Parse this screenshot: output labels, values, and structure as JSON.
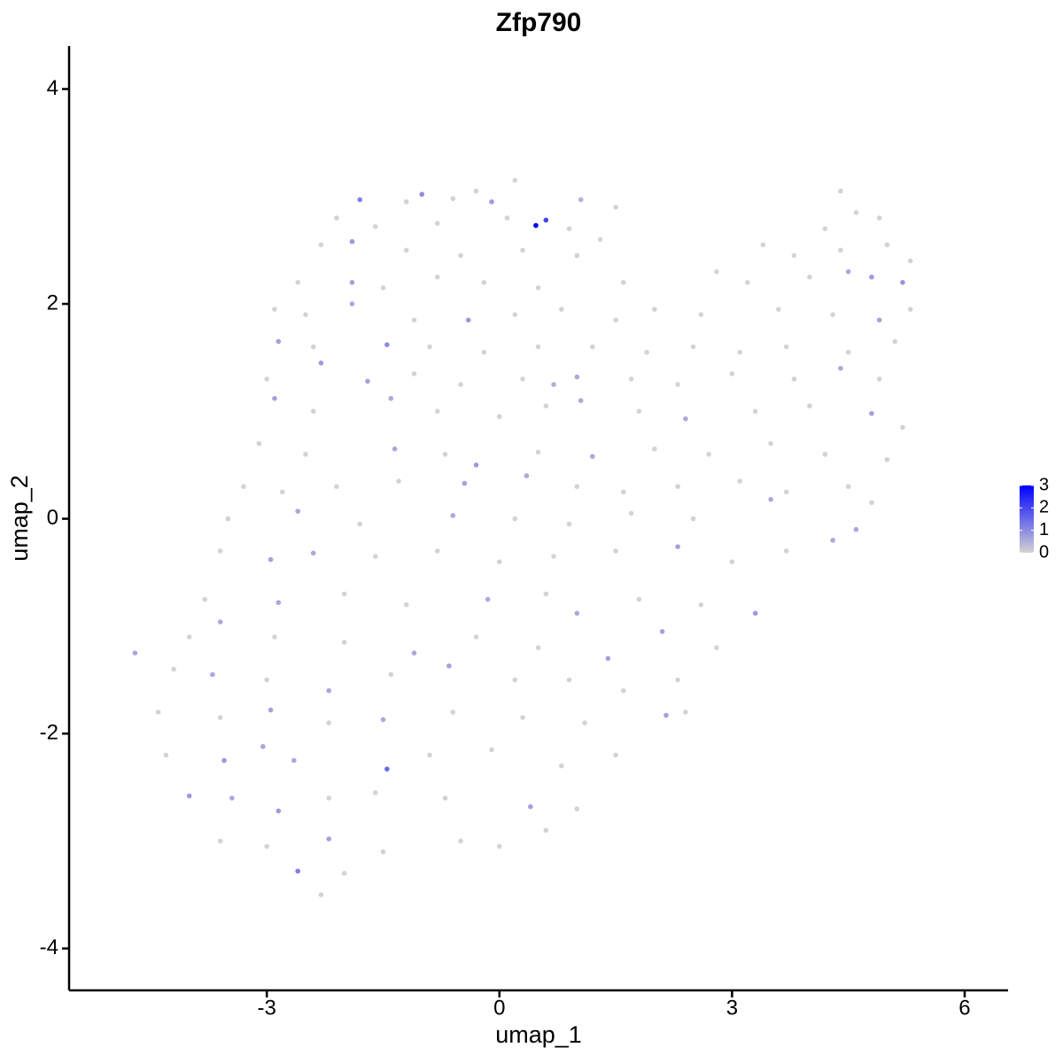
{
  "chart_data": {
    "type": "scatter",
    "title": "Zfp790",
    "xlabel": "umap_1",
    "ylabel": "umap_2",
    "xlim": [
      -5.55,
      6.56
    ],
    "ylim": [
      -4.39,
      4.4
    ],
    "xticks": [
      -3,
      0,
      3,
      6
    ],
    "yticks": [
      -4,
      -2,
      0,
      2,
      4
    ],
    "colors": [
      "#d3d3d3",
      "#0000ff"
    ],
    "colorbar_lim": [
      0,
      3
    ],
    "colorbar_ticks": [
      0,
      1,
      2,
      3
    ],
    "legend": "right",
    "x": [
      -1.8,
      -1.2,
      -1.0,
      -0.6,
      -0.3,
      0.2,
      -0.1,
      1.05,
      1.5,
      4.4,
      -2.1,
      -1.6,
      -0.8,
      0.1,
      0.47,
      0.6,
      0.9,
      4.6,
      4.9,
      4.2,
      -2.3,
      -1.9,
      -1.2,
      -0.5,
      0.3,
      1.0,
      1.3,
      3.4,
      3.8,
      4.4,
      5.0,
      5.3,
      -2.6,
      -1.9,
      -1.5,
      -0.8,
      -0.2,
      0.5,
      1.6,
      2.8,
      3.2,
      4.0,
      4.5,
      4.8,
      5.2,
      -2.9,
      -2.5,
      -1.9,
      -1.1,
      -0.4,
      0.2,
      0.8,
      1.5,
      2.0,
      2.6,
      3.6,
      4.3,
      4.9,
      5.3,
      -2.85,
      -2.4,
      -1.45,
      -0.9,
      -0.2,
      0.5,
      1.2,
      1.9,
      2.5,
      3.1,
      3.7,
      4.5,
      5.1,
      -3.0,
      -2.3,
      -1.7,
      -1.1,
      -0.5,
      0.3,
      0.7,
      1.0,
      1.7,
      2.3,
      3.0,
      3.8,
      4.4,
      4.9,
      -2.9,
      -2.4,
      -1.4,
      -0.8,
      0.0,
      0.6,
      1.05,
      1.8,
      2.4,
      3.3,
      4.0,
      4.8,
      5.2,
      -3.1,
      -2.5,
      -1.35,
      -0.7,
      -0.3,
      0.5,
      1.2,
      2.0,
      2.7,
      3.5,
      4.2,
      5.0,
      -3.3,
      -2.8,
      -2.1,
      -1.3,
      -0.45,
      0.35,
      1.0,
      1.6,
      2.3,
      3.1,
      3.7,
      4.5,
      4.8,
      -3.5,
      -2.6,
      -1.8,
      -0.6,
      0.2,
      0.9,
      1.7,
      2.5,
      3.5,
      4.3,
      4.6,
      -3.6,
      -2.95,
      -2.4,
      -1.6,
      -0.8,
      0.0,
      0.7,
      1.5,
      2.3,
      3.0,
      3.7,
      -3.8,
      -2.85,
      -2.0,
      -1.2,
      -0.15,
      0.6,
      1.0,
      1.8,
      2.6,
      3.3,
      -4.7,
      -4.0,
      -3.6,
      -2.9,
      -2.0,
      -1.1,
      -0.3,
      0.5,
      1.4,
      2.1,
      2.8,
      -4.2,
      -3.7,
      -3.0,
      -2.2,
      -1.4,
      -0.65,
      0.2,
      0.9,
      1.6,
      2.3,
      -4.4,
      -3.6,
      -2.95,
      -2.2,
      -1.5,
      -0.6,
      0.3,
      1.1,
      2.15,
      2.4,
      -4.3,
      -3.55,
      -3.05,
      -2.65,
      -1.45,
      -0.9,
      -0.1,
      0.8,
      1.5,
      -4.0,
      -3.45,
      -2.85,
      -2.2,
      -1.6,
      -0.7,
      0.4,
      1.0,
      0.6,
      -3.6,
      -3.0,
      -2.6,
      -2.2,
      -1.5,
      -0.5,
      0.0,
      -2.3,
      -2.0
    ],
    "y": [
      2.97,
      2.95,
      3.02,
      2.98,
      3.05,
      3.15,
      2.95,
      2.97,
      2.9,
      3.05,
      2.8,
      2.72,
      2.75,
      2.8,
      2.73,
      2.78,
      2.7,
      2.85,
      2.8,
      2.7,
      2.55,
      2.58,
      2.5,
      2.45,
      2.5,
      2.45,
      2.6,
      2.55,
      2.45,
      2.5,
      2.55,
      2.4,
      2.2,
      2.2,
      2.15,
      2.25,
      2.2,
      2.15,
      2.2,
      2.3,
      2.2,
      2.25,
      2.3,
      2.25,
      2.2,
      1.95,
      1.9,
      2.0,
      1.85,
      1.85,
      1.9,
      1.95,
      1.85,
      1.95,
      1.9,
      1.95,
      1.9,
      1.85,
      1.95,
      1.65,
      1.6,
      1.62,
      1.6,
      1.55,
      1.6,
      1.6,
      1.55,
      1.6,
      1.55,
      1.6,
      1.55,
      1.65,
      1.3,
      1.45,
      1.28,
      1.35,
      1.25,
      1.3,
      1.25,
      1.32,
      1.3,
      1.25,
      1.35,
      1.3,
      1.4,
      1.3,
      1.12,
      1.0,
      1.12,
      1.0,
      0.95,
      1.05,
      1.1,
      1.0,
      0.93,
      1.0,
      1.05,
      0.98,
      0.85,
      0.7,
      0.6,
      0.65,
      0.6,
      0.5,
      0.62,
      0.58,
      0.65,
      0.6,
      0.7,
      0.6,
      0.55,
      0.3,
      0.25,
      0.3,
      0.35,
      0.33,
      0.4,
      0.3,
      0.25,
      0.3,
      0.35,
      0.25,
      0.3,
      0.15,
      0.0,
      0.07,
      -0.05,
      0.03,
      0.0,
      -0.05,
      0.05,
      0.0,
      0.18,
      -0.2,
      -0.1,
      -0.3,
      -0.38,
      -0.32,
      -0.35,
      -0.3,
      -0.4,
      -0.35,
      -0.3,
      -0.26,
      -0.4,
      -0.3,
      -0.75,
      -0.78,
      -0.7,
      -0.8,
      -0.75,
      -0.7,
      -0.88,
      -0.75,
      -0.8,
      -0.88,
      -1.25,
      -1.1,
      -0.96,
      -1.1,
      -1.15,
      -1.25,
      -1.1,
      -1.2,
      -1.3,
      -1.05,
      -1.2,
      -1.4,
      -1.45,
      -1.5,
      -1.6,
      -1.45,
      -1.37,
      -1.5,
      -1.5,
      -1.6,
      -1.5,
      -1.8,
      -1.85,
      -1.78,
      -1.9,
      -1.87,
      -1.8,
      -1.85,
      -1.9,
      -1.83,
      -1.8,
      -2.2,
      -2.25,
      -2.12,
      -2.25,
      -2.33,
      -2.2,
      -2.15,
      -2.3,
      -2.2,
      -2.58,
      -2.6,
      -2.72,
      -2.6,
      -2.55,
      -2.6,
      -2.68,
      -2.7,
      -2.9,
      -3.0,
      -3.05,
      -3.28,
      -2.98,
      -3.1,
      -3.0,
      -3.05,
      -3.5,
      -3.3
    ],
    "values": [
      1.2,
      0,
      1,
      0,
      0,
      0,
      0.8,
      0.5,
      0,
      0,
      0,
      0,
      0,
      0,
      3,
      2,
      0,
      0,
      0,
      0,
      0,
      0.8,
      0,
      0,
      0,
      0,
      0,
      0,
      0,
      0,
      0,
      0,
      0,
      0.7,
      0,
      0,
      0,
      0,
      0,
      0,
      0,
      0,
      0.6,
      0.8,
      0.9,
      0,
      0,
      0.6,
      0,
      0.8,
      0,
      0,
      0,
      0,
      0,
      0,
      0,
      0.7,
      0,
      0.7,
      0,
      1,
      0,
      0,
      0,
      0,
      0,
      0,
      0,
      0,
      0,
      0,
      0,
      0.8,
      0.7,
      0,
      0,
      0,
      0.5,
      0.6,
      0,
      0,
      0,
      0,
      0.6,
      0,
      0.7,
      0,
      0.6,
      0,
      0,
      0,
      0.6,
      0,
      0.6,
      0,
      0,
      0.7,
      0,
      0,
      0,
      0.6,
      0,
      0.8,
      0,
      0.6,
      0,
      0,
      0,
      0,
      0,
      0,
      0,
      0,
      0,
      0.7,
      0.6,
      0,
      0,
      0,
      0,
      0,
      0,
      0,
      0,
      0.6,
      0,
      0.6,
      0,
      0,
      0,
      0,
      0.6,
      0.6,
      0.6,
      0,
      0.7,
      0.6,
      0,
      0,
      0,
      0,
      0,
      0.7,
      0,
      0,
      0,
      0.6,
      0,
      0,
      0.6,
      0,
      0.6,
      0,
      0,
      0.8,
      0.6,
      0,
      0.6,
      0,
      0,
      0.6,
      0,
      0,
      0.7,
      0.7,
      0,
      0,
      0.6,
      0,
      0.6,
      0,
      0.7,
      0,
      0,
      0,
      0,
      0,
      0,
      0.7,
      0,
      0.6,
      0,
      0,
      0,
      0.7,
      0,
      0,
      0.8,
      0.6,
      0.6,
      1.5,
      0,
      0,
      0,
      0,
      0.8,
      0.6,
      0.8,
      0,
      0,
      0,
      0.7,
      0,
      0,
      0,
      0,
      1.2,
      0.7,
      0,
      0,
      0,
      0,
      0
    ]
  }
}
